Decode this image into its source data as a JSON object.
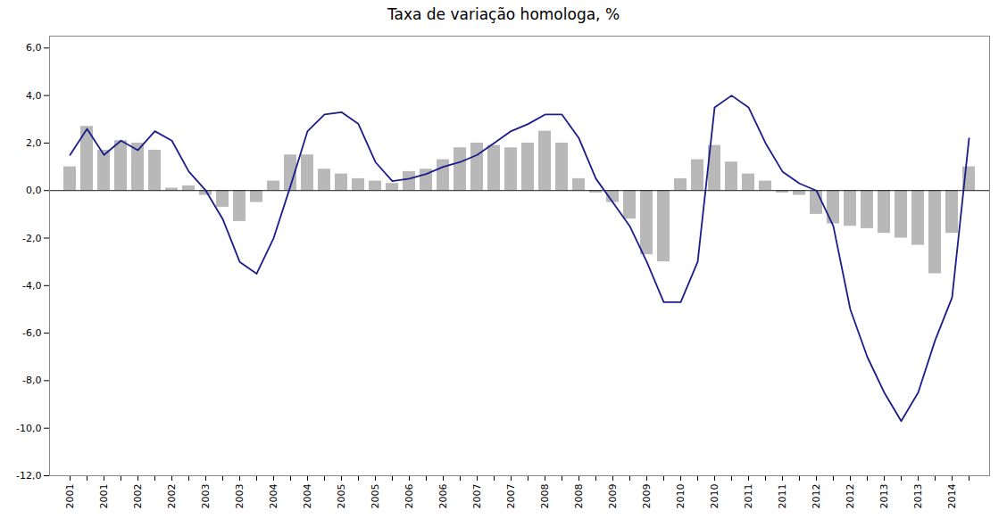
{
  "chart_data": {
    "type": "bar",
    "title": "Taxa de variação homologa, %",
    "categories": [
      "2001",
      null,
      "2001",
      null,
      "2002",
      null,
      "2002",
      null,
      "2003",
      null,
      "2003",
      null,
      "2004",
      null,
      "2004",
      null,
      "2005",
      null,
      "2005",
      null,
      "2006",
      null,
      "2006",
      null,
      "2007",
      null,
      "2007",
      null,
      "2008",
      null,
      "2008",
      null,
      "2009",
      null,
      "2009",
      null,
      "2010",
      null,
      "2010",
      null,
      "2011",
      null,
      "2011",
      null,
      "2012",
      null,
      "2012",
      null,
      "2013",
      null,
      "2013",
      null,
      "2014",
      null
    ],
    "series": [
      {
        "type": "bar",
        "color": "#b8b8b8",
        "values": [
          1.0,
          2.7,
          1.7,
          2.1,
          2.0,
          1.7,
          0.1,
          0.2,
          -0.2,
          -0.7,
          -1.3,
          -0.5,
          0.4,
          1.5,
          1.5,
          0.9,
          0.7,
          0.5,
          0.4,
          0.3,
          0.8,
          0.9,
          1.3,
          1.8,
          2.0,
          1.9,
          1.8,
          2.0,
          2.5,
          2.0,
          0.5,
          -0.1,
          -0.5,
          -1.2,
          -2.7,
          -3.0,
          0.5,
          1.3,
          1.9,
          1.2,
          0.7,
          0.4,
          -0.1,
          -0.2,
          -1.0,
          -1.4,
          -1.5,
          -1.6,
          -1.8,
          -2.0,
          -2.3,
          -3.5,
          -1.8,
          1.0
        ]
      },
      {
        "type": "line",
        "color": "#1c1c8c",
        "values": [
          1.5,
          2.6,
          1.5,
          2.1,
          1.7,
          2.5,
          2.1,
          0.8,
          0.0,
          -1.2,
          -3.0,
          -3.5,
          -2.0,
          0.2,
          2.5,
          3.2,
          3.3,
          2.8,
          1.2,
          0.4,
          0.5,
          0.7,
          1.0,
          1.2,
          1.5,
          2.0,
          2.5,
          2.8,
          3.2,
          3.2,
          2.2,
          0.5,
          -0.5,
          -1.5,
          -3.0,
          -4.7,
          -4.7,
          -3.0,
          3.5,
          4.0,
          3.5,
          2.0,
          0.8,
          0.3,
          0.0,
          -1.5,
          -5.0,
          -7.0,
          -8.5,
          -9.7,
          -8.5,
          -6.3,
          -4.5,
          2.2
        ]
      }
    ],
    "ylim": [
      -12.0,
      6.5
    ],
    "yticks": [
      {
        "value": -12.0,
        "label": "-12,0"
      },
      {
        "value": -10.0,
        "label": "-10,0"
      },
      {
        "value": -8.0,
        "label": "-8,0"
      },
      {
        "value": -6.0,
        "label": "-6,0"
      },
      {
        "value": -4.0,
        "label": "-4,0"
      },
      {
        "value": -2.0,
        "label": "-2,0"
      },
      {
        "value": 0.0,
        "label": "0,0"
      },
      {
        "value": 2.0,
        "label": "2,0"
      },
      {
        "value": 4.0,
        "label": "4,0"
      },
      {
        "value": 6.0,
        "label": "6,0"
      }
    ],
    "grid": false
  }
}
